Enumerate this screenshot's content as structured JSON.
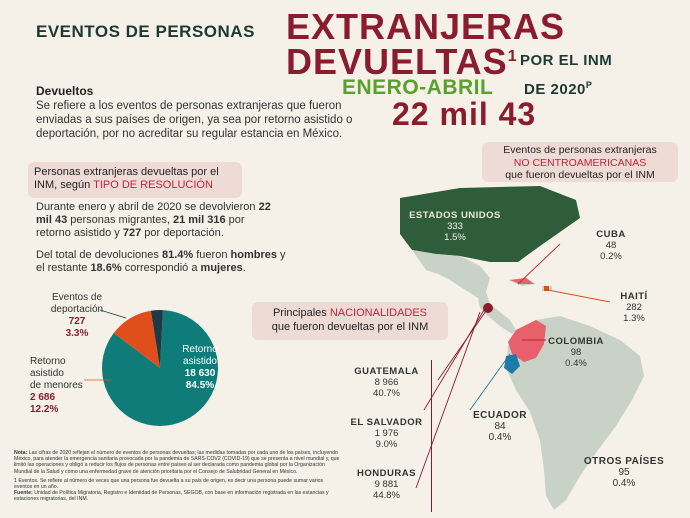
{
  "header": {
    "prefix": "EVENTOS DE PERSONAS",
    "line1": "EXTRANJERAS",
    "line2": "DEVUELTAS",
    "sup1": "1",
    "suffix": "POR EL INM",
    "period": "ENERO-ABRIL",
    "year": "DE 2020",
    "supP": "P",
    "total": "22 mil 43"
  },
  "definition": {
    "title": "Devueltos",
    "text": "Se refiere a los eventos de personas extranjeras que fueron enviadas a sus países de origen, ya sea por retorno asistido o deportación, por no acreditar su regular estancia en México."
  },
  "resolution_box": {
    "line1": "Personas extranjeras devueltas por el",
    "line2a": "INM, según",
    "line2b": "TIPO DE RESOLUCIÓN"
  },
  "summary": {
    "p1a": "Durante enero y abril de 2020 se devolvieron",
    "p1b": "22 mil 43",
    "p1c": "personas migrantes,",
    "p1d": "21 mil 316",
    "p1e": "por retorno asistido y",
    "p1f": "727",
    "p1g": "por deportación.",
    "p2a": "Del total de devoluciones",
    "p2b": "81.4%",
    "p2c": "fueron",
    "p2d": "hombres",
    "p2e": "y el restante",
    "p2f": "18.6%",
    "p2g": "correspondió a",
    "p2h": "mujeres",
    "p2i": "."
  },
  "pie": {
    "slices": [
      {
        "label": "Retorno asistido",
        "value": 18630,
        "value_text": "18 630",
        "pct": "84.5%",
        "color": "#0f7c7a"
      },
      {
        "label": "Retorno asistido de menores",
        "value": 2686,
        "value_text": "2 686",
        "pct": "12.2%",
        "color": "#e04e1c"
      },
      {
        "label": "Eventos de deportación",
        "value": 727,
        "value_text": "727",
        "pct": "3.3%",
        "color": "#1e3a45"
      }
    ],
    "label_retorno_l1": "Retorno",
    "label_retorno_l2": "asistido",
    "label_menores_l1": "Retorno",
    "label_menores_l2": "asistido",
    "label_menores_l3": "de menores",
    "label_dep_l1": "Eventos de",
    "label_dep_l2": "deportación"
  },
  "non_ca_box": {
    "line1": "Eventos de personas extranjeras",
    "line2": "NO CENTROAMERICANAS",
    "line3": "que fueron devueltas por el INM"
  },
  "nationalities_box": {
    "line1a": "Principales",
    "line1b": "NACIONALIDADES",
    "line2": "que fueron devueltas por el INM"
  },
  "countries": {
    "usa": {
      "name": "ESTADOS UNIDOS",
      "value": "333",
      "pct": "1.5%"
    },
    "cuba": {
      "name": "CUBA",
      "value": "48",
      "pct": "0.2%"
    },
    "haiti": {
      "name": "HAITÍ",
      "value": "282",
      "pct": "1.3%"
    },
    "colombia": {
      "name": "COLOMBIA",
      "value": "98",
      "pct": "0.4%"
    },
    "ecuador": {
      "name": "ECUADOR",
      "value": "84",
      "pct": "0.4%"
    },
    "otros": {
      "name": "OTROS PAÍSES",
      "value": "95",
      "pct": "0.4%"
    },
    "guatemala": {
      "name": "GUATEMALA",
      "value": "8 966",
      "pct": "40.7%"
    },
    "elsalvador": {
      "name": "EL SALVADOR",
      "value": "1 976",
      "pct": "9.0%"
    },
    "honduras": {
      "name": "HONDURAS",
      "value": "9 881",
      "pct": "44.8%"
    }
  },
  "notes": {
    "nota_label": "Nota:",
    "nota": "Las cifras de 2020 reflejan el número de eventos de personas devueltas; las medidas tomadas por cada uno de los países, incluyendo México, para atender la emergencia sanitaria provocada por la pandemia de SARS-COV2 (COVID-19) que se presenta a nivel mundial y, que limitó las operaciones y obligó a reducir los flujos de personas entre países al ser declarada como pandemia global por la Organización Mundial de la Salud y como una enfermedad grave de atención prioritaria por el Consejo de Salubridad General en México.",
    "n1": "1  Eventos. Se refiere al número de veces que una persona fue devuelta a su país de origen, es decir una persona puede sumar varios eventos en un año.",
    "fuente_label": "Fuente:",
    "fuente": "Unidad de Política Migratoria, Registro e Identidad de Personas, SEGOB, con base en información registrada en las estancias y estaciones migratorias, del INM."
  },
  "colors": {
    "maroon": "#8a1c2e",
    "green": "#5aa02c",
    "teal": "#0f7c7a",
    "orange": "#e04e1c",
    "navy": "#1e3a45",
    "map_land": "#c9d2c6",
    "map_usa": "#2f5c3a",
    "map_colombia": "#e8606a"
  }
}
